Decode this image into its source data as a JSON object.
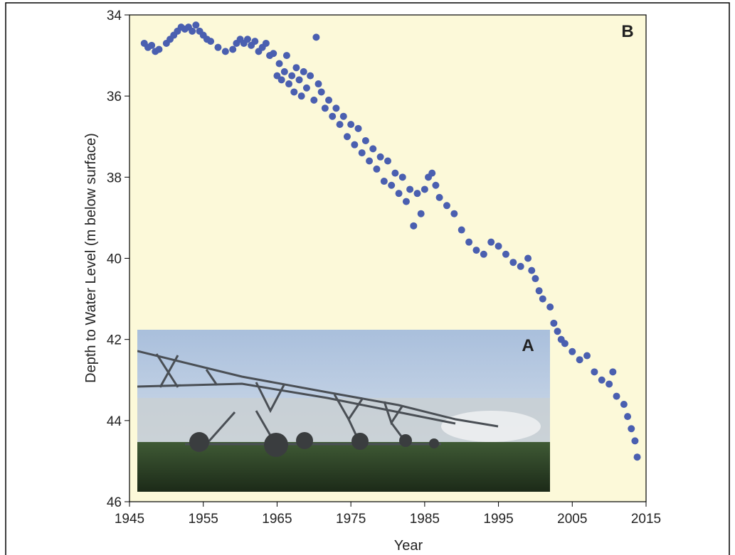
{
  "chart_data": {
    "type": "scatter",
    "x_label": "Year",
    "y_label": "Depth to Water Level (m below surface)",
    "panel_label": "B",
    "inset_label": "A",
    "color": "#4a5fb0",
    "background": "#fcf9d9",
    "xlim": [
      1945,
      2015
    ],
    "xticks": [
      1945,
      1955,
      1965,
      1975,
      1985,
      1995,
      2005,
      2015
    ],
    "ylim": [
      34,
      46
    ],
    "yticks": [
      34,
      36,
      38,
      40,
      42,
      44,
      46
    ],
    "invert_y": true,
    "x": [
      1947.0,
      1947.5,
      1948,
      1948.5,
      1949,
      1950,
      1950.5,
      1951,
      1951.5,
      1952,
      1952.5,
      1953,
      1953.5,
      1954,
      1954.5,
      1955,
      1955.5,
      1956,
      1957,
      1958,
      1959,
      1959.5,
      1960,
      1960.5,
      1961,
      1961.5,
      1962,
      1962.5,
      1963,
      1963.5,
      1964,
      1964.5,
      1965,
      1965.3,
      1965.6,
      1966,
      1966.3,
      1966.6,
      1967,
      1967.3,
      1967.6,
      1968,
      1968.3,
      1968.6,
      1969,
      1969.5,
      1970,
      1970.3,
      1970.6,
      1971,
      1971.5,
      1972,
      1972.5,
      1973,
      1973.5,
      1974,
      1974.5,
      1975,
      1975.5,
      1976,
      1976.5,
      1977,
      1977.5,
      1978,
      1978.5,
      1979,
      1979.5,
      1980,
      1980.5,
      1981,
      1981.5,
      1982,
      1982.5,
      1983,
      1983.5,
      1984,
      1984.5,
      1985,
      1985.5,
      1986,
      1986.5,
      1987,
      1988,
      1989,
      1990,
      1991,
      1992,
      1993,
      1994,
      1995,
      1996,
      1997,
      1998,
      1999,
      1999.5,
      2000,
      2000.5,
      2001,
      2002,
      2002.5,
      2003,
      2003.5,
      2004,
      2005,
      2006,
      2007,
      2008,
      2009,
      2010,
      2010.5,
      2011,
      2012,
      2012.5,
      2013,
      2013.5,
      2013.8
    ],
    "values": [
      34.7,
      34.8,
      34.75,
      34.9,
      34.85,
      34.7,
      34.6,
      34.5,
      34.4,
      34.3,
      34.35,
      34.3,
      34.4,
      34.25,
      34.4,
      34.5,
      34.6,
      34.65,
      34.8,
      34.9,
      34.85,
      34.7,
      34.6,
      34.7,
      34.6,
      34.75,
      34.65,
      34.9,
      34.8,
      34.7,
      35.0,
      34.95,
      35.5,
      35.2,
      35.6,
      35.4,
      35.0,
      35.7,
      35.5,
      35.9,
      35.3,
      35.6,
      36.0,
      35.4,
      35.8,
      35.5,
      36.1,
      34.55,
      35.7,
      35.9,
      36.3,
      36.1,
      36.5,
      36.3,
      36.7,
      36.5,
      37.0,
      36.7,
      37.2,
      36.8,
      37.4,
      37.1,
      37.6,
      37.3,
      37.8,
      37.5,
      38.1,
      37.6,
      38.2,
      37.9,
      38.4,
      38.0,
      38.6,
      38.3,
      39.2,
      38.4,
      38.9,
      38.3,
      38.0,
      37.9,
      38.2,
      38.5,
      38.7,
      38.9,
      39.3,
      39.6,
      39.8,
      39.9,
      39.6,
      39.7,
      39.9,
      40.1,
      40.2,
      40.0,
      40.3,
      40.5,
      40.8,
      41.0,
      41.2,
      41.6,
      41.8,
      42.0,
      42.1,
      42.3,
      42.5,
      42.4,
      42.8,
      43.0,
      43.1,
      42.8,
      43.4,
      43.6,
      43.9,
      44.2,
      44.5,
      44.9
    ]
  }
}
